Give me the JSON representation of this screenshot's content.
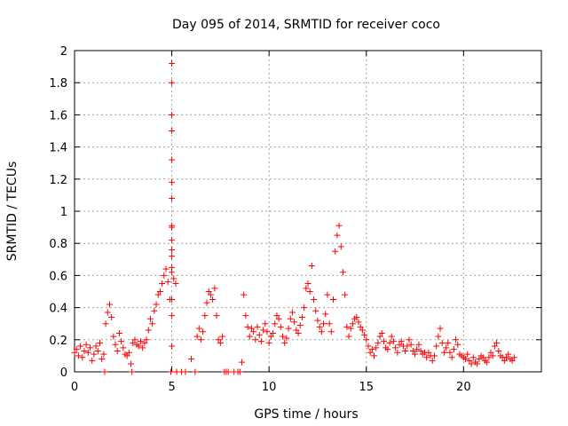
{
  "chart_data": {
    "type": "scatter",
    "title": "Day 095 of 2014, SRMTID for receiver coco",
    "xlabel": "GPS time / hours",
    "ylabel": "SRMTID / TECUs",
    "xlim": [
      0,
      24
    ],
    "ylim": [
      0,
      2
    ],
    "x_ticks": [
      0,
      5,
      10,
      15,
      20
    ],
    "y_ticks": [
      0,
      0.2,
      0.4,
      0.6,
      0.8,
      1,
      1.2,
      1.4,
      1.6,
      1.8,
      2
    ],
    "x_tick_labels": [
      "0",
      "5",
      "10",
      "15",
      "20"
    ],
    "y_tick_labels": [
      "0",
      "0.2",
      "0.4",
      "0.6",
      "0.8",
      "1",
      "1.2",
      "1.4",
      "1.6",
      "1.8",
      "2"
    ],
    "grid": true,
    "marker": "+",
    "series": [
      {
        "name": "SRMTID",
        "color": "#ff0000",
        "points": [
          [
            0.0,
            0.12
          ],
          [
            0.1,
            0.14
          ],
          [
            0.2,
            0.1
          ],
          [
            0.3,
            0.16
          ],
          [
            0.4,
            0.09
          ],
          [
            0.5,
            0.13
          ],
          [
            0.6,
            0.17
          ],
          [
            0.7,
            0.12
          ],
          [
            0.8,
            0.15
          ],
          [
            0.9,
            0.07
          ],
          [
            1.0,
            0.11
          ],
          [
            1.1,
            0.16
          ],
          [
            1.2,
            0.13
          ],
          [
            1.3,
            0.18
          ],
          [
            1.4,
            0.08
          ],
          [
            1.5,
            0.11
          ],
          [
            1.55,
            0.0
          ],
          [
            1.6,
            0.3
          ],
          [
            1.7,
            0.37
          ],
          [
            1.8,
            0.42
          ],
          [
            1.9,
            0.34
          ],
          [
            2.0,
            0.22
          ],
          [
            2.1,
            0.17
          ],
          [
            2.2,
            0.13
          ],
          [
            2.3,
            0.24
          ],
          [
            2.4,
            0.19
          ],
          [
            2.5,
            0.15
          ],
          [
            2.6,
            0.11
          ],
          [
            2.7,
            0.1
          ],
          [
            2.8,
            0.12
          ],
          [
            2.9,
            0.05
          ],
          [
            2.95,
            0.0
          ],
          [
            3.0,
            0.18
          ],
          [
            3.1,
            0.2
          ],
          [
            3.2,
            0.17
          ],
          [
            3.3,
            0.16
          ],
          [
            3.4,
            0.19
          ],
          [
            3.5,
            0.15
          ],
          [
            3.6,
            0.18
          ],
          [
            3.7,
            0.2
          ],
          [
            3.8,
            0.26
          ],
          [
            3.9,
            0.33
          ],
          [
            4.0,
            0.3
          ],
          [
            4.1,
            0.38
          ],
          [
            4.2,
            0.42
          ],
          [
            4.3,
            0.48
          ],
          [
            4.4,
            0.5
          ],
          [
            4.5,
            0.55
          ],
          [
            4.6,
            0.6
          ],
          [
            4.7,
            0.64
          ],
          [
            4.8,
            0.56
          ],
          [
            4.9,
            0.45
          ],
          [
            4.95,
            0.0
          ],
          [
            5.0,
            0.16
          ],
          [
            5.0,
            0.35
          ],
          [
            5.0,
            0.45
          ],
          [
            5.0,
            0.62
          ],
          [
            5.0,
            0.65
          ],
          [
            5.0,
            0.72
          ],
          [
            5.0,
            0.76
          ],
          [
            5.0,
            0.82
          ],
          [
            5.0,
            0.9
          ],
          [
            5.0,
            0.91
          ],
          [
            5.0,
            1.08
          ],
          [
            5.0,
            1.18
          ],
          [
            5.0,
            1.32
          ],
          [
            5.0,
            1.5
          ],
          [
            5.0,
            1.6
          ],
          [
            5.0,
            1.8
          ],
          [
            5.0,
            1.92
          ],
          [
            5.1,
            0.58
          ],
          [
            5.2,
            0.55
          ],
          [
            5.25,
            0.0
          ],
          [
            5.5,
            0.0
          ],
          [
            5.7,
            0.0
          ],
          [
            6.0,
            0.08
          ],
          [
            6.2,
            0.0
          ],
          [
            6.3,
            0.22
          ],
          [
            6.4,
            0.27
          ],
          [
            6.5,
            0.2
          ],
          [
            6.6,
            0.25
          ],
          [
            6.7,
            0.35
          ],
          [
            6.8,
            0.43
          ],
          [
            6.9,
            0.5
          ],
          [
            7.0,
            0.48
          ],
          [
            7.1,
            0.45
          ],
          [
            7.2,
            0.52
          ],
          [
            7.3,
            0.35
          ],
          [
            7.4,
            0.2
          ],
          [
            7.5,
            0.18
          ],
          [
            7.6,
            0.22
          ],
          [
            7.7,
            0.0
          ],
          [
            7.8,
            0.0
          ],
          [
            7.9,
            0.0
          ],
          [
            8.2,
            0.0
          ],
          [
            8.4,
            0.0
          ],
          [
            8.5,
            0.0
          ],
          [
            8.6,
            0.06
          ],
          [
            8.7,
            0.48
          ],
          [
            8.8,
            0.35
          ],
          [
            8.9,
            0.28
          ],
          [
            9.0,
            0.22
          ],
          [
            9.1,
            0.27
          ],
          [
            9.2,
            0.25
          ],
          [
            9.3,
            0.2
          ],
          [
            9.4,
            0.28
          ],
          [
            9.5,
            0.23
          ],
          [
            9.6,
            0.19
          ],
          [
            9.7,
            0.26
          ],
          [
            9.8,
            0.3
          ],
          [
            9.9,
            0.25
          ],
          [
            10.0,
            0.18
          ],
          [
            10.1,
            0.22
          ],
          [
            10.2,
            0.24
          ],
          [
            10.3,
            0.3
          ],
          [
            10.4,
            0.35
          ],
          [
            10.5,
            0.33
          ],
          [
            10.6,
            0.28
          ],
          [
            10.7,
            0.22
          ],
          [
            10.8,
            0.18
          ],
          [
            10.9,
            0.21
          ],
          [
            11.0,
            0.27
          ],
          [
            11.1,
            0.33
          ],
          [
            11.2,
            0.37
          ],
          [
            11.3,
            0.31
          ],
          [
            11.4,
            0.26
          ],
          [
            11.5,
            0.24
          ],
          [
            11.6,
            0.29
          ],
          [
            11.7,
            0.34
          ],
          [
            11.8,
            0.4
          ],
          [
            11.9,
            0.52
          ],
          [
            12.0,
            0.55
          ],
          [
            12.1,
            0.5
          ],
          [
            12.2,
            0.66
          ],
          [
            12.3,
            0.45
          ],
          [
            12.4,
            0.38
          ],
          [
            12.5,
            0.32
          ],
          [
            12.6,
            0.28
          ],
          [
            12.7,
            0.25
          ],
          [
            12.8,
            0.3
          ],
          [
            12.9,
            0.36
          ],
          [
            13.0,
            0.48
          ],
          [
            13.1,
            0.3
          ],
          [
            13.2,
            0.25
          ],
          [
            13.3,
            0.45
          ],
          [
            13.4,
            0.75
          ],
          [
            13.5,
            0.85
          ],
          [
            13.6,
            0.91
          ],
          [
            13.7,
            0.78
          ],
          [
            13.8,
            0.62
          ],
          [
            13.9,
            0.48
          ],
          [
            14.0,
            0.28
          ],
          [
            14.1,
            0.22
          ],
          [
            14.2,
            0.27
          ],
          [
            14.3,
            0.3
          ],
          [
            14.4,
            0.33
          ],
          [
            14.5,
            0.34
          ],
          [
            14.6,
            0.31
          ],
          [
            14.7,
            0.28
          ],
          [
            14.8,
            0.26
          ],
          [
            14.9,
            0.23
          ],
          [
            15.0,
            0.2
          ],
          [
            15.1,
            0.16
          ],
          [
            15.2,
            0.12
          ],
          [
            15.3,
            0.14
          ],
          [
            15.4,
            0.1
          ],
          [
            15.5,
            0.15
          ],
          [
            15.6,
            0.18
          ],
          [
            15.7,
            0.22
          ],
          [
            15.8,
            0.24
          ],
          [
            15.9,
            0.19
          ],
          [
            16.0,
            0.15
          ],
          [
            16.1,
            0.14
          ],
          [
            16.2,
            0.18
          ],
          [
            16.3,
            0.22
          ],
          [
            16.4,
            0.19
          ],
          [
            16.5,
            0.15
          ],
          [
            16.6,
            0.12
          ],
          [
            16.7,
            0.17
          ],
          [
            16.8,
            0.19
          ],
          [
            16.9,
            0.16
          ],
          [
            17.0,
            0.13
          ],
          [
            17.1,
            0.16
          ],
          [
            17.2,
            0.2
          ],
          [
            17.3,
            0.17
          ],
          [
            17.4,
            0.13
          ],
          [
            17.5,
            0.11
          ],
          [
            17.6,
            0.14
          ],
          [
            17.7,
            0.17
          ],
          [
            17.8,
            0.13
          ],
          [
            17.9,
            0.11
          ],
          [
            18.0,
            0.12
          ],
          [
            18.1,
            0.09
          ],
          [
            18.2,
            0.12
          ],
          [
            18.3,
            0.1
          ],
          [
            18.4,
            0.07
          ],
          [
            18.5,
            0.1
          ],
          [
            18.6,
            0.16
          ],
          [
            18.7,
            0.22
          ],
          [
            18.8,
            0.27
          ],
          [
            18.9,
            0.18
          ],
          [
            19.0,
            0.12
          ],
          [
            19.1,
            0.15
          ],
          [
            19.2,
            0.18
          ],
          [
            19.3,
            0.12
          ],
          [
            19.4,
            0.09
          ],
          [
            19.5,
            0.14
          ],
          [
            19.6,
            0.2
          ],
          [
            19.7,
            0.17
          ],
          [
            19.8,
            0.11
          ],
          [
            19.9,
            0.1
          ],
          [
            20.0,
            0.09
          ],
          [
            20.1,
            0.08
          ],
          [
            20.2,
            0.11
          ],
          [
            20.3,
            0.07
          ],
          [
            20.4,
            0.05
          ],
          [
            20.5,
            0.09
          ],
          [
            20.6,
            0.06
          ],
          [
            20.7,
            0.05
          ],
          [
            20.8,
            0.08
          ],
          [
            20.9,
            0.1
          ],
          [
            21.0,
            0.09
          ],
          [
            21.1,
            0.07
          ],
          [
            21.2,
            0.06
          ],
          [
            21.3,
            0.09
          ],
          [
            21.4,
            0.12
          ],
          [
            21.5,
            0.1
          ],
          [
            21.6,
            0.16
          ],
          [
            21.7,
            0.18
          ],
          [
            21.8,
            0.13
          ],
          [
            21.9,
            0.1
          ],
          [
            22.0,
            0.09
          ],
          [
            22.1,
            0.07
          ],
          [
            22.2,
            0.09
          ],
          [
            22.3,
            0.11
          ],
          [
            22.4,
            0.08
          ],
          [
            22.5,
            0.07
          ],
          [
            22.6,
            0.09
          ]
        ]
      }
    ]
  }
}
